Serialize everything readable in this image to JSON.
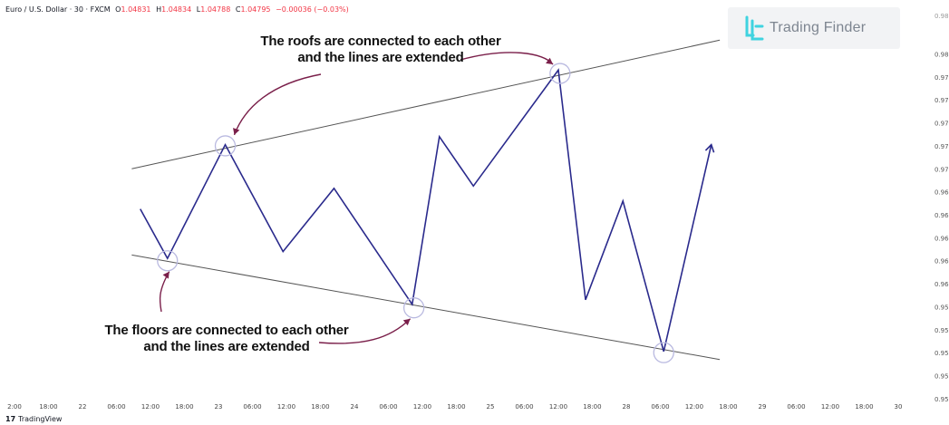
{
  "header": {
    "symbol": "Euro / U.S. Dollar · 30 · FXCM",
    "ohlc": [
      {
        "label": "O",
        "value": "1.04831"
      },
      {
        "label": "H",
        "value": "1.04834"
      },
      {
        "label": "L",
        "value": "1.04788"
      },
      {
        "label": "C",
        "value": "1.04795"
      }
    ],
    "change": "−0.00036 (−0.03%)"
  },
  "brand": {
    "name": "Trading Finder",
    "icon": "trading-finder-logo-icon",
    "icon_color": "#3fd3e0",
    "text_color": "#7d8590"
  },
  "annotations": {
    "roofs": [
      "The roofs are connected to each other",
      "and the lines are extended"
    ],
    "floors": [
      "The floors are connected to each other",
      "and the lines are extended"
    ]
  },
  "footer": {
    "logo_mark": "17",
    "logo_text": "TradingView"
  },
  "chart_data": {
    "type": "line",
    "series_color": "#2a2a8c",
    "trendline_color": "#555555",
    "arrow_color": "#7a1f4a",
    "marker_color": "#b9b9e0",
    "x_ticks": [
      "2:00",
      "18:00",
      "22",
      "06:00",
      "12:00",
      "18:00",
      "23",
      "06:00",
      "12:00",
      "18:00",
      "24",
      "06:00",
      "12:00",
      "18:00",
      "25",
      "06:00",
      "12:00",
      "18:00",
      "28",
      "06:00",
      "12:00",
      "18:00",
      "29",
      "06:00",
      "12:00",
      "18:00",
      "30"
    ],
    "y_ticks": [
      "0.9500",
      "0.9520",
      "0.9540",
      "0.9560",
      "0.9580",
      "0.9600",
      "0.9620",
      "0.9640",
      "0.9660",
      "0.9680",
      "0.9700",
      "0.9720",
      "0.9740",
      "0.9760",
      "0.9780",
      "0.9800"
    ],
    "y_top_partial": "0.9820",
    "ylim": [
      0.9492,
      0.9828
    ],
    "x_index_range": [
      0,
      26
    ],
    "series": [
      {
        "points": [
          [
            3.7,
            0.9665
          ],
          [
            4.5,
            0.9622
          ],
          [
            6.2,
            0.9721
          ],
          [
            7.9,
            0.9628
          ],
          [
            9.4,
            0.9683
          ],
          [
            11.7,
            0.9582
          ],
          [
            12.5,
            0.9728
          ],
          [
            13.5,
            0.9685
          ],
          [
            16.0,
            0.9786
          ],
          [
            16.8,
            0.9586
          ],
          [
            17.9,
            0.9672
          ],
          [
            19.1,
            0.9541
          ],
          [
            20.5,
            0.9721
          ]
        ]
      }
    ],
    "trendlines": [
      {
        "role": "roof",
        "from": [
          3.45,
          0.97
        ],
        "to": [
          20.75,
          0.9812
        ]
      },
      {
        "role": "floor",
        "from": [
          3.45,
          0.9625
        ],
        "to": [
          20.75,
          0.9534
        ]
      }
    ],
    "touch_markers": [
      {
        "role": "roof",
        "x": 6.2,
        "y": 0.972
      },
      {
        "role": "roof",
        "x": 16.05,
        "y": 0.9783
      },
      {
        "role": "floor",
        "x": 4.5,
        "y": 0.962
      },
      {
        "role": "floor",
        "x": 11.75,
        "y": 0.9579
      },
      {
        "role": "floor",
        "x": 19.1,
        "y": 0.954
      }
    ]
  }
}
